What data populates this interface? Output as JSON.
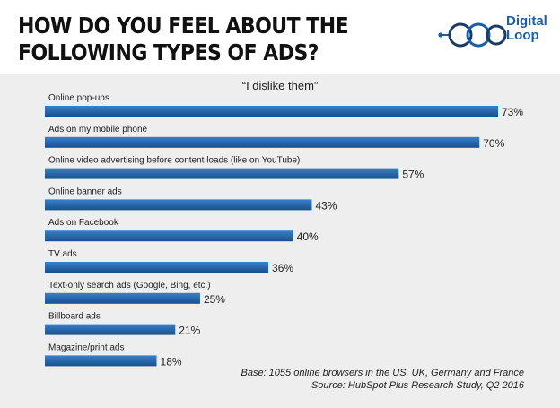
{
  "title": "HOW DO YOU FEEL ABOUT THE FOLLOWING TYPES OF ADS?",
  "logo": {
    "line1": "Digital",
    "line2": "Loop"
  },
  "chart_data": {
    "type": "bar",
    "orientation": "horizontal",
    "title": "HOW DO YOU FEEL ABOUT THE FOLLOWING TYPES OF ADS?",
    "subtitle": "“I dislike them”",
    "categories": [
      "Online pop-ups",
      "Ads on my mobile phone",
      "Online video advertising before content loads (like on YouTube)",
      "Online banner ads",
      "Ads on Facebook",
      "TV ads",
      "Text-only search ads (Google, Bing, etc.)",
      "Billboard ads",
      "Magazine/print ads"
    ],
    "values": [
      73,
      70,
      57,
      43,
      40,
      36,
      25,
      21,
      18
    ],
    "data_labels": [
      "73%",
      "70%",
      "57%",
      "43%",
      "40%",
      "36%",
      "25%",
      "21%",
      "18%"
    ],
    "unit": "%",
    "xlim": [
      0,
      73
    ],
    "grid": false,
    "legend": "none",
    "bar_color": "#1f5fa6"
  },
  "notes": {
    "base": "Base: 1055 online browsers in the US, UK, Germany and France",
    "source": "Source: HubSpot Plus Research Study, Q2 2016"
  },
  "colors": {
    "bar_dark": "#17508f",
    "bar_light": "#3a80c8",
    "panel": "#eeeeee",
    "brand": "#1b5ea8"
  }
}
